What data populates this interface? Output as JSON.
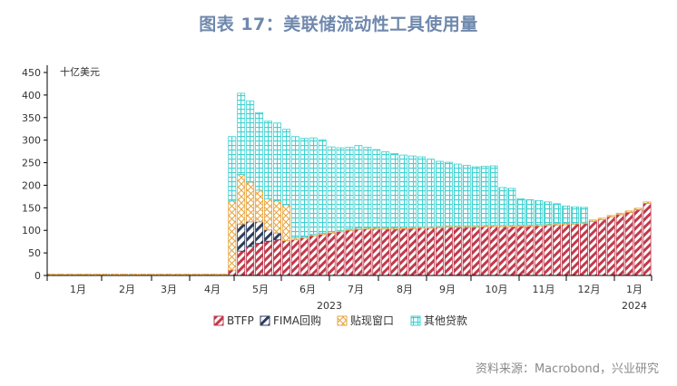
{
  "title": "图表 17：美联储流动性工具使用量",
  "source": "资料来源：Macrobond，兴业研究",
  "chart_data": {
    "type": "bar",
    "stacked": true,
    "unit_label": "十亿美元",
    "ylim": [
      0,
      450
    ],
    "yticks": [
      0,
      50,
      100,
      150,
      200,
      250,
      300,
      350,
      400,
      450
    ],
    "month_labels": [
      "1月",
      "2月",
      "3月",
      "4月",
      "5月",
      "6月",
      "7月",
      "8月",
      "9月",
      "10月",
      "11月",
      "12月",
      "1月"
    ],
    "year_labels": [
      "2023",
      "2024"
    ],
    "series": [
      {
        "name": "BTFP",
        "color": "#c0394b",
        "values": [
          0,
          0,
          0,
          0,
          0,
          0,
          0,
          0,
          0,
          0,
          0,
          0,
          0,
          0,
          0,
          0,
          0,
          0,
          0,
          0,
          12,
          54,
          64,
          71,
          76,
          79,
          77,
          79,
          83,
          88,
          91,
          94,
          97,
          100,
          102,
          103,
          103,
          103,
          103,
          104,
          104,
          105,
          105,
          106,
          107,
          107,
          107,
          107,
          108,
          108,
          108,
          108,
          109,
          109,
          110,
          111,
          112,
          113,
          114,
          115,
          120,
          124,
          130,
          135,
          140,
          146,
          160
        ]
      },
      {
        "name": "FIMA回购",
        "color": "#2f3d5c",
        "values": [
          0,
          0,
          0,
          0,
          0,
          0,
          0,
          0,
          0,
          0,
          0,
          0,
          0,
          0,
          0,
          0,
          0,
          0,
          0,
          0,
          0,
          60,
          55,
          48,
          25,
          15,
          0,
          0,
          0,
          0,
          0,
          0,
          0,
          0,
          0,
          0,
          0,
          0,
          0,
          0,
          0,
          0,
          0,
          0,
          0,
          0,
          0,
          0,
          0,
          0,
          0,
          0,
          0,
          0,
          0,
          0,
          0,
          0,
          0,
          0,
          0,
          0,
          0,
          0,
          0,
          0,
          0
        ]
      },
      {
        "name": "贴现窗口",
        "color": "#e8a33a",
        "values": [
          3,
          3,
          3,
          3,
          3,
          3,
          3,
          3,
          3,
          3,
          3,
          3,
          3,
          3,
          3,
          3,
          3,
          3,
          3,
          3,
          153,
          110,
          88,
          70,
          69,
          72,
          80,
          5,
          3,
          3,
          3,
          3,
          3,
          3,
          3,
          3,
          3,
          3,
          3,
          3,
          3,
          3,
          3,
          3,
          3,
          3,
          3,
          3,
          3,
          3,
          3,
          3,
          3,
          3,
          3,
          3,
          3,
          3,
          3,
          3,
          3,
          3,
          3,
          3,
          3,
          3,
          3
        ]
      },
      {
        "name": "其他贷款",
        "color": "#3fd1d1",
        "values": [
          0,
          0,
          0,
          0,
          0,
          0,
          0,
          0,
          0,
          0,
          0,
          0,
          0,
          0,
          0,
          0,
          0,
          0,
          0,
          0,
          143,
          180,
          180,
          172,
          172,
          172,
          167,
          224,
          218,
          214,
          207,
          188,
          183,
          181,
          183,
          178,
          173,
          168,
          164,
          160,
          158,
          155,
          150,
          144,
          141,
          137,
          134,
          131,
          131,
          132,
          84,
          82,
          58,
          56,
          53,
          49,
          44,
          38,
          35,
          33,
          0,
          0,
          0,
          0,
          0,
          0,
          0
        ]
      }
    ]
  }
}
